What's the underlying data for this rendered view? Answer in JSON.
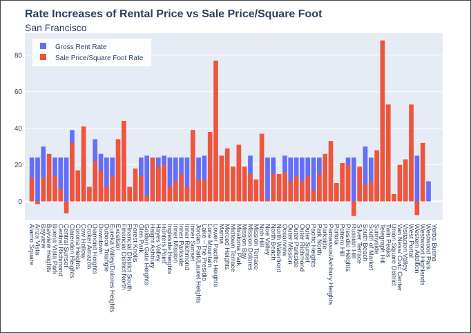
{
  "chart_data": {
    "type": "bar",
    "title": "Rate Increases of Rental Price vs Sale Price/Square Foot",
    "subtitle": "San Francisco",
    "ylim": [
      -10,
      92
    ],
    "yticks": [
      0,
      20,
      40,
      60,
      80
    ],
    "grid": true,
    "legend_position": "top-left",
    "categories": [
      "Alamo Square",
      "Anza Vista",
      "Bayview",
      "Bayview Heights",
      "Buena Vista Park",
      "Central Richmond",
      "Central Sunset",
      "Clarendon Heights",
      "Corona Heights",
      "Cow Hollow",
      "Croker Amazon",
      "Diamond Heights",
      "Downtown",
      "Duboce Triangle",
      "Eureka Valley/Dolores Heights",
      "Excelsior",
      "Financial District North",
      "Financial District South",
      "Forest Knolls",
      "Glen Park",
      "Golden Gate Heights",
      "Haight Ashbury",
      "Hayes Valley",
      "Hunters Point",
      "Ingleside Heights",
      "Inner Mission",
      "Inner Parkside",
      "Inner Richmond",
      "Inner Sunset",
      "Jordan Park/Laurel Heights",
      "Lake --The Presidio",
      "Lone Mountain",
      "Lower Pacific Heights",
      "Marina",
      "Merced Heights",
      "Midtown Terrace",
      "Miraloma Park",
      "Mission Bay",
      "Mission Dolores",
      "Mission Terrace",
      "Nob Hill",
      "Noe Valley",
      "North Beach",
      "North Waterfront",
      "Oceanview",
      "Outer Mission",
      "Outer Parkside",
      "Outer Richmond",
      "Outer Sunset",
      "Pacific Heights",
      "Park North",
      "Parkside",
      "Parnassus/Ashbury Heights",
      "Portola",
      "Potrero Hill",
      "Presidio Heights",
      "Russian Hill",
      "Silver Terrace",
      "South Beach",
      "South of Market",
      "Sunnyside",
      "Telegraph Hill",
      "Twin Peaks",
      "Union Square District",
      "Van Ness/ Civic Center",
      "Visitacion Valley",
      "West Portal",
      "Western Addition",
      "Westwood Highlands",
      "Westwood Park",
      "Yerba Buena"
    ],
    "series": [
      {
        "name": "Gross Rent Rate",
        "color": "#636efa",
        "values": [
          24,
          24,
          30,
          0,
          24,
          24,
          24,
          39,
          0,
          24,
          0,
          34,
          26,
          24,
          24,
          24,
          24,
          0,
          0,
          24,
          25,
          24,
          24,
          25,
          24,
          24,
          24,
          24,
          24,
          24,
          25,
          0,
          24,
          24,
          0,
          0,
          30,
          0,
          25,
          0,
          24,
          24,
          24,
          0,
          25,
          24,
          24,
          24,
          24,
          24,
          24,
          24,
          25,
          0,
          0,
          24,
          24,
          0,
          30,
          24,
          24,
          24,
          0,
          0,
          0,
          14,
          30,
          25,
          0,
          11,
          0
        ]
      },
      {
        "name": "Sale Price/Square Foot Rate",
        "color": "#ef553b",
        "values": [
          13,
          -1.5,
          13,
          26,
          14,
          7,
          -6.5,
          32,
          17,
          41,
          8,
          22,
          17,
          8,
          14,
          34,
          44,
          8,
          18,
          14,
          3,
          24,
          19,
          20,
          8,
          11,
          15,
          8,
          39,
          12,
          12,
          38,
          77,
          25,
          29,
          19,
          31,
          19,
          15,
          12,
          37,
          1,
          15,
          15,
          16,
          11,
          14,
          11,
          14,
          6,
          15,
          26,
          33,
          10,
          21,
          20,
          -8,
          19,
          9,
          11,
          28,
          88,
          53,
          4,
          20,
          23,
          53,
          -7.5,
          32,
          0,
          0
        ]
      }
    ]
  }
}
